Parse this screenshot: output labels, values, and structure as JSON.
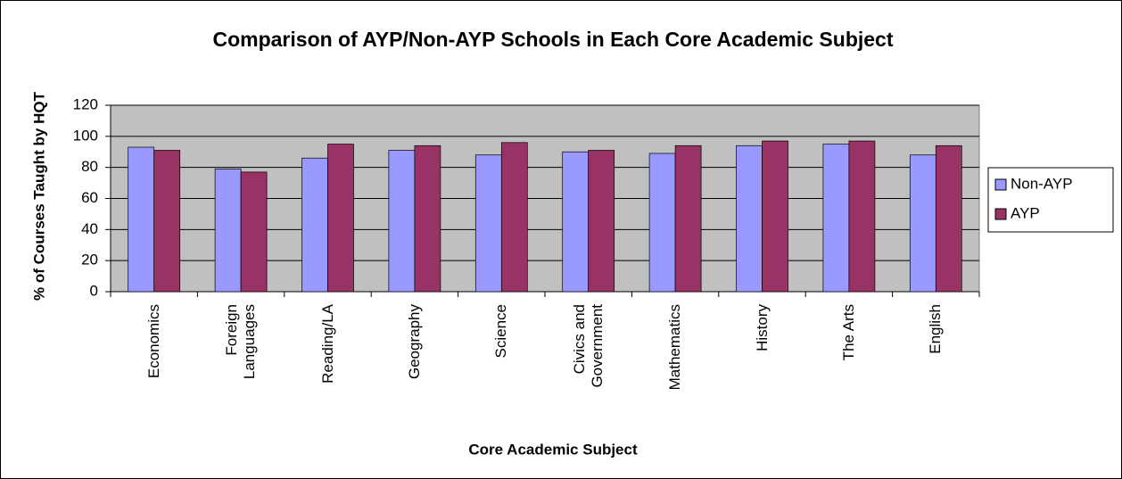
{
  "chart_data": {
    "type": "bar",
    "title": "Comparison of AYP/Non-AYP Schools in Each Core Academic Subject",
    "xlabel": "Core Academic Subject",
    "ylabel": "% of Courses Taught by HQT",
    "categories": [
      "Economics",
      "Foreign Languages",
      "Reading/LA",
      "Geography",
      "Science",
      "Civics and Government",
      "Mathematics",
      "History",
      "The Arts",
      "English"
    ],
    "series": [
      {
        "name": "Non-AYP",
        "color": "#9999ff",
        "values": [
          93,
          79,
          86,
          91,
          88,
          90,
          89,
          94,
          95,
          88
        ]
      },
      {
        "name": "AYP",
        "color": "#993366",
        "values": [
          91,
          77,
          95,
          94,
          96,
          91,
          94,
          97,
          97,
          94
        ]
      }
    ],
    "ylim": [
      0,
      120
    ],
    "yticks": [
      0,
      20,
      40,
      60,
      80,
      100,
      120
    ],
    "grid": true,
    "legend": "right"
  }
}
